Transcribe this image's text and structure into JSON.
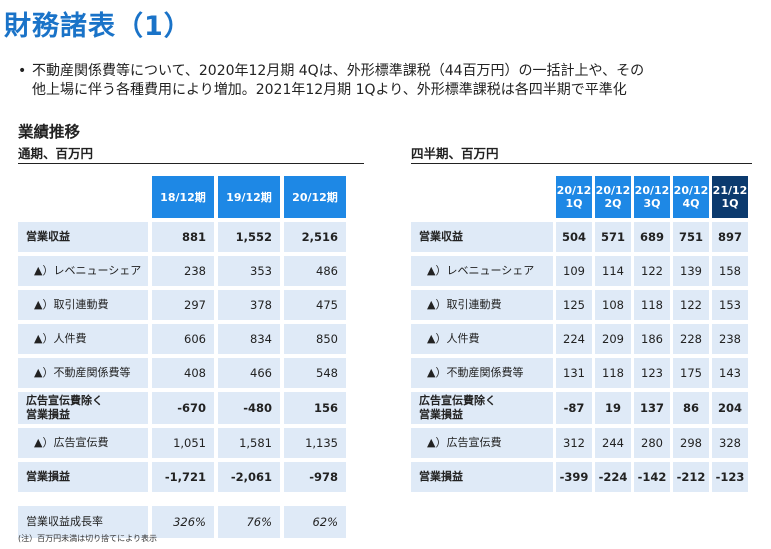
{
  "title": "財務諸表（1）",
  "bullet": {
    "line1": "不動産関係費等について、2020年12月期 4Qは、外形標準課税（44百万円）の一括計上や、その",
    "line2": "他上場に伴う各種費用により増加。2021年12月期 1Qより、外形標準課税は各四半期で平準化"
  },
  "section_title": "業績推移",
  "annual": {
    "subtitle": "通期、百万円",
    "headers": [
      "18/12期",
      "19/12期",
      "20/12期"
    ],
    "rows": [
      {
        "label": "営業収益",
        "values": [
          "881",
          "1,552",
          "2,516"
        ]
      },
      {
        "label": "▲）レベニューシェア",
        "values": [
          "238",
          "353",
          "486"
        ]
      },
      {
        "label": "▲）取引連動費",
        "values": [
          "297",
          "378",
          "475"
        ]
      },
      {
        "label": "▲）人件費",
        "values": [
          "606",
          "834",
          "850"
        ]
      },
      {
        "label": "▲）不動産関係費等",
        "values": [
          "408",
          "466",
          "548"
        ]
      },
      {
        "label": "広告宣伝費除く",
        "label2": "営業損益",
        "values": [
          "-670",
          "-480",
          "156"
        ]
      },
      {
        "label": "▲）広告宣伝費",
        "values": [
          "1,051",
          "1,581",
          "1,135"
        ]
      },
      {
        "label": "営業損益",
        "values": [
          "-1,721",
          "-2,061",
          "-978"
        ]
      }
    ],
    "growth": {
      "label": "営業収益成長率",
      "values": [
        "326%",
        "76%",
        "62%"
      ]
    }
  },
  "quarterly": {
    "subtitle": "四半期、百万円",
    "headers": [
      {
        "l1": "20/12",
        "l2": "1Q"
      },
      {
        "l1": "20/12",
        "l2": "2Q"
      },
      {
        "l1": "20/12",
        "l2": "3Q"
      },
      {
        "l1": "20/12",
        "l2": "4Q"
      },
      {
        "l1": "21/12",
        "l2": "1Q"
      }
    ],
    "rows": [
      {
        "label": "営業収益",
        "values": [
          "504",
          "571",
          "689",
          "751",
          "897"
        ]
      },
      {
        "label": "▲）レベニューシェア",
        "values": [
          "109",
          "114",
          "122",
          "139",
          "158"
        ]
      },
      {
        "label": "▲）取引連動費",
        "values": [
          "125",
          "108",
          "118",
          "122",
          "153"
        ]
      },
      {
        "label": "▲）人件費",
        "values": [
          "224",
          "209",
          "186",
          "228",
          "238"
        ]
      },
      {
        "label": "▲）不動産関係費等",
        "values": [
          "131",
          "118",
          "123",
          "175",
          "143"
        ]
      },
      {
        "label": "広告宣伝費除く",
        "label2": "営業損益",
        "values": [
          "-87",
          "19",
          "137",
          "86",
          "204"
        ]
      },
      {
        "label": "▲）広告宣伝費",
        "values": [
          "312",
          "244",
          "280",
          "298",
          "328"
        ]
      },
      {
        "label": "営業損益",
        "values": [
          "-399",
          "-224",
          "-142",
          "-212",
          "-123"
        ]
      }
    ]
  },
  "note": "(注）百万円未満は切り捨てにより表示",
  "colors": {
    "accent": "#1a73c8",
    "header_blue": "#1e88e5",
    "header_dark": "#0b3a6e",
    "cell_bg": "#dfeaf7"
  }
}
